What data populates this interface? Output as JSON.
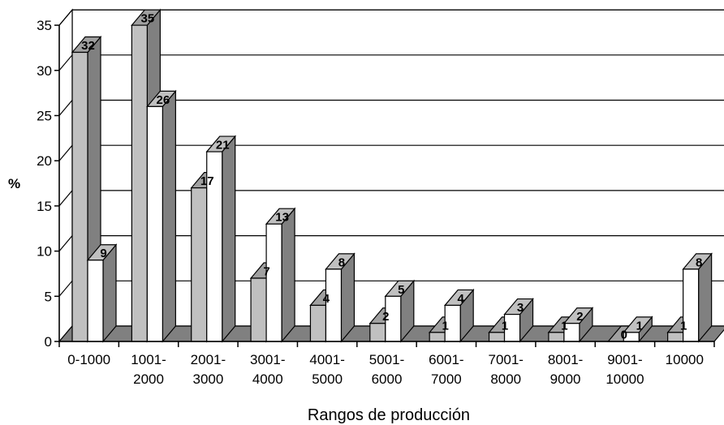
{
  "chart_data": {
    "type": "bar",
    "categories": [
      "0-1000",
      "1001-\n2000",
      "2001-\n3000",
      "3001-\n4000",
      "4001-\n5000",
      "5001-\n6000",
      "6001-\n7000",
      "7001-\n8000",
      "8001-\n9000",
      "9001-\n10000",
      "10000"
    ],
    "series": [
      {
        "color": "#c0c0c0",
        "values": [
          32,
          35,
          17,
          7,
          4,
          2,
          1,
          1,
          1,
          0,
          1
        ]
      },
      {
        "color": "#ffffff",
        "values": [
          9,
          26,
          21,
          13,
          8,
          5,
          4,
          3,
          2,
          1,
          8
        ]
      }
    ],
    "xlabel": "Rangos de producción",
    "ylabel": "%",
    "ylim": [
      0,
      35
    ],
    "yticks": [
      0,
      5,
      10,
      15,
      20,
      25,
      30,
      35
    ],
    "grid": true,
    "style": "3d-clustered-column"
  }
}
